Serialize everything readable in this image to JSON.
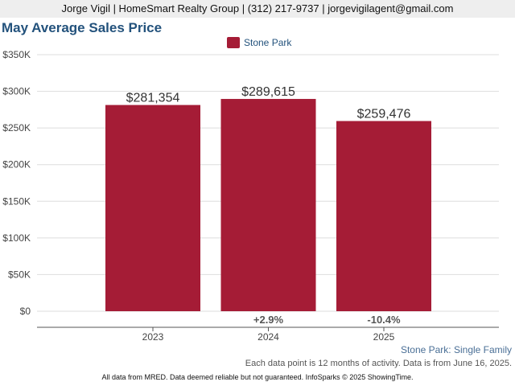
{
  "header": {
    "contact_line": "Jorge Vigil | HomeSmart Realty Group | (312) 217-9737 | jorgevigilagent@gmail.com"
  },
  "colors": {
    "bar": "#a51c36",
    "title": "#23527c",
    "grid": "#dddddd"
  },
  "chart_data": {
    "type": "bar",
    "title": "May Average Sales Price",
    "categories": [
      "2023",
      "2024",
      "2025"
    ],
    "series": [
      {
        "name": "Stone Park",
        "values": [
          281354,
          289615,
          259476
        ]
      }
    ],
    "data_labels": [
      "$281,354",
      "$289,615",
      "$259,476"
    ],
    "change_labels": [
      "",
      "+2.9%",
      "-10.4%"
    ],
    "yticks": [
      0,
      50000,
      100000,
      150000,
      200000,
      250000,
      300000,
      350000
    ],
    "ytick_labels": [
      "$0",
      "$50K",
      "$100K",
      "$150K",
      "$200K",
      "$250K",
      "$300K",
      "$350K"
    ],
    "ylim": [
      0,
      350000
    ],
    "xlabel": "",
    "ylabel": "",
    "grid": true,
    "legend_position": "top-center"
  },
  "subtitle": "Stone Park: Single Family",
  "note": "Each data point is 12 months of activity. Data is from June 16, 2025.",
  "footer": "All data from MRED. Data deemed reliable but not guaranteed. InfoSparks © 2025 ShowingTime."
}
